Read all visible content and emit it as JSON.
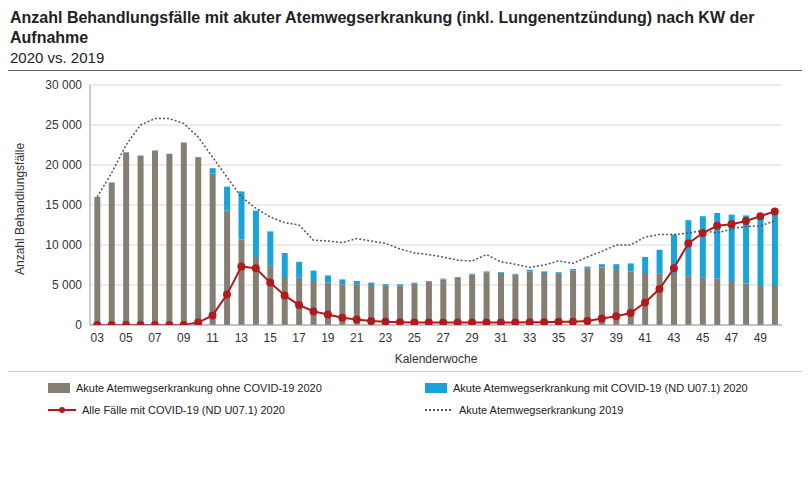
{
  "chart_data": {
    "type": "bar",
    "title": "Anzahl Behandlungsfälle mit akuter Atemwegserkrankung (inkl. Lungenentzündung) nach KW der Aufnahme",
    "subtitle": "2020 vs. 2019",
    "x_label": "Kalenderwoche",
    "y_label": "Anzahl Behandlungsfälle",
    "categories": [
      "03",
      null,
      "05",
      null,
      "07",
      null,
      "09",
      null,
      "11",
      null,
      "13",
      null,
      "15",
      null,
      "17",
      null,
      "19",
      null,
      "21",
      null,
      "23",
      null,
      "25",
      null,
      "27",
      null,
      "29",
      null,
      "31",
      null,
      "33",
      null,
      "35",
      null,
      "37",
      null,
      "39",
      null,
      "41",
      null,
      "43",
      null,
      "45",
      null,
      "47",
      null,
      "49",
      null
    ],
    "stacked": true,
    "grid": true,
    "legend": "bottom",
    "ylim": [
      0,
      30000
    ],
    "yticks": [
      0,
      {
        "value": 5000,
        "label": "5 000"
      },
      {
        "value": 10000,
        "label": "10 000"
      },
      {
        "value": 15000,
        "label": "15 000"
      },
      {
        "value": 20000,
        "label": "20 000"
      },
      {
        "value": 25000,
        "label": "25 000"
      },
      {
        "value": 30000,
        "label": "30 000"
      }
    ],
    "series": [
      {
        "name": "Akute Atemwegserkrankung ohne COVID-19 2020",
        "type": "bar",
        "color": "#857f73",
        "values": [
          16000,
          17800,
          21600,
          21200,
          21800,
          21400,
          22800,
          20900,
          18900,
          14300,
          10700,
          8500,
          7400,
          6000,
          5900,
          5500,
          5300,
          5100,
          5100,
          5000,
          4900,
          4950,
          5200,
          5400,
          5700,
          5900,
          6300,
          6600,
          6500,
          6300,
          6700,
          6500,
          6400,
          6800,
          7100,
          7200,
          7000,
          6700,
          6500,
          6400,
          6500,
          6100,
          5900,
          5800,
          5500,
          5200,
          5000,
          5000
        ]
      },
      {
        "name": "Akute Atemwegserkrankung mit COVID-19 (ND U07.1) 2020",
        "type": "bar",
        "color": "#1aa3d9",
        "values": [
          0,
          0,
          0,
          0,
          0,
          0,
          0,
          100,
          700,
          3000,
          6000,
          5800,
          4300,
          3000,
          2000,
          1300,
          900,
          600,
          400,
          300,
          200,
          150,
          100,
          100,
          100,
          100,
          100,
          100,
          100,
          100,
          200,
          200,
          200,
          200,
          200,
          400,
          600,
          1000,
          2000,
          3000,
          4800,
          7000,
          7700,
          8200,
          8300,
          8500,
          8700,
          9200
        ]
      },
      {
        "name": "Alle Fälle mit COVID-19 (ND U07.1) 2020",
        "type": "line",
        "color": "#b01c1c",
        "marker": "circle",
        "values": [
          0,
          0,
          0,
          0,
          0,
          0,
          0,
          300,
          1200,
          3800,
          7300,
          7100,
          5300,
          3700,
          2500,
          1700,
          1300,
          900,
          700,
          500,
          400,
          350,
          300,
          300,
          300,
          300,
          300,
          300,
          300,
          300,
          350,
          350,
          400,
          400,
          500,
          800,
          1100,
          1500,
          2800,
          4500,
          7100,
          10200,
          11500,
          12400,
          12600,
          13000,
          13600,
          14200
        ]
      },
      {
        "name": "Akute Atemwegserkrankung 2019",
        "type": "line",
        "color": "#555555",
        "line_style": "dotted",
        "values": [
          16000,
          19000,
          22500,
          25000,
          25800,
          25800,
          25200,
          23500,
          21000,
          18500,
          16000,
          14600,
          13500,
          12800,
          12500,
          10600,
          10500,
          10300,
          10800,
          10500,
          10200,
          9500,
          9000,
          8800,
          8500,
          8100,
          8000,
          8800,
          7900,
          7600,
          7200,
          7500,
          8000,
          7700,
          8500,
          9200,
          10000,
          10000,
          11000,
          11300,
          11300,
          11500,
          11800,
          11500,
          12000,
          12300,
          12400,
          13000
        ]
      }
    ]
  }
}
